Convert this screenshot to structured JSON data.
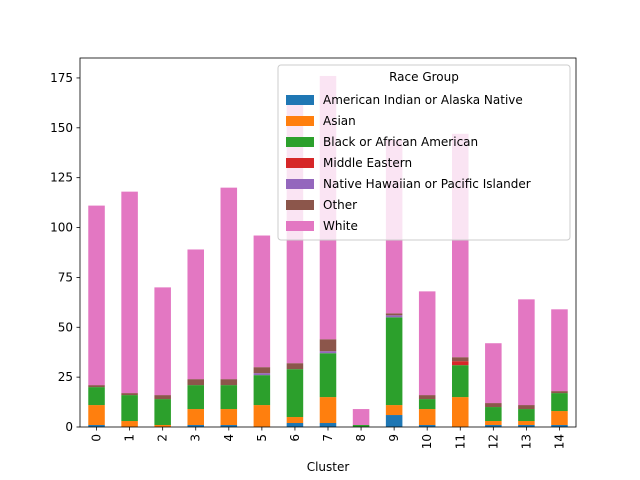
{
  "chart_data": {
    "type": "bar",
    "stacked": true,
    "xlabel": "Cluster",
    "ylabel": "",
    "ylim": [
      0,
      185
    ],
    "yticks": [
      0,
      25,
      50,
      75,
      100,
      125,
      150,
      175
    ],
    "grid": false,
    "categories": [
      "0",
      "1",
      "2",
      "3",
      "4",
      "5",
      "6",
      "7",
      "8",
      "9",
      "10",
      "11",
      "12",
      "13",
      "14"
    ],
    "legend": {
      "title": "Race Group",
      "placement": "upper-right"
    },
    "series": [
      {
        "name": "American Indian or Alaska Native",
        "color": "#1f77b4",
        "values": [
          1,
          0,
          0,
          1,
          1,
          0,
          2,
          2,
          0,
          6,
          1,
          0,
          1,
          1,
          1
        ]
      },
      {
        "name": "Asian",
        "color": "#ff7f0e",
        "values": [
          10,
          3,
          1,
          8,
          8,
          11,
          3,
          13,
          0,
          5,
          8,
          15,
          2,
          2,
          7
        ]
      },
      {
        "name": "Black or African American",
        "color": "#2ca02c",
        "values": [
          9,
          13,
          13,
          12,
          12,
          15,
          24,
          22,
          1,
          44,
          5,
          16,
          7,
          6,
          9
        ]
      },
      {
        "name": "Middle Eastern",
        "color": "#d62728",
        "values": [
          0,
          0,
          0,
          0,
          0,
          0,
          0,
          0,
          0,
          0,
          0,
          2,
          0,
          0,
          0
        ]
      },
      {
        "name": "Native Hawaiian or Pacific Islander",
        "color": "#9467bd",
        "values": [
          0,
          0,
          0,
          0,
          0,
          1,
          0,
          1,
          0,
          1,
          0,
          0,
          0,
          0,
          0
        ]
      },
      {
        "name": "Other",
        "color": "#8c564b",
        "values": [
          1,
          1,
          2,
          3,
          3,
          3,
          3,
          6,
          0,
          1,
          2,
          2,
          2,
          2,
          1
        ]
      },
      {
        "name": "White",
        "color": "#e377c2",
        "values": [
          90,
          101,
          54,
          65,
          96,
          66,
          131,
          132,
          8,
          87,
          52,
          112,
          30,
          53,
          41
        ]
      }
    ]
  }
}
